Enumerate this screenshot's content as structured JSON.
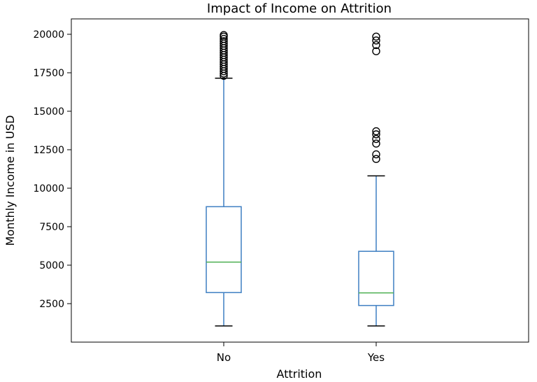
{
  "chart_data": {
    "type": "box",
    "title": "Impact of Income on Attrition",
    "xlabel": "Attrition",
    "ylabel": "Monthly Income in USD",
    "categories": [
      "No",
      "Yes"
    ],
    "ylim": [
      0,
      21000
    ],
    "yticks": [
      2500,
      5000,
      7500,
      10000,
      12500,
      15000,
      17500,
      20000
    ],
    "grid": false,
    "colors": {
      "box": "#3e7fc2",
      "median": "#4caf50",
      "flier": "#000000"
    },
    "boxes": [
      {
        "name": "No",
        "whisker_low": 1050,
        "q1": 3220,
        "median": 5200,
        "q3": 8800,
        "whisker_high": 17150,
        "outliers": [
          17300,
          17450,
          17600,
          17750,
          17900,
          18050,
          18200,
          18350,
          18500,
          18650,
          18800,
          18950,
          19100,
          19250,
          19400,
          19550,
          19700,
          19850,
          19950
        ]
      },
      {
        "name": "Yes",
        "whisker_low": 1050,
        "q1": 2380,
        "median": 3200,
        "q3": 5900,
        "whisker_high": 10800,
        "outliers": [
          11900,
          12200,
          12900,
          13200,
          13500,
          13700,
          18900,
          19300,
          19600,
          19850
        ]
      }
    ]
  }
}
